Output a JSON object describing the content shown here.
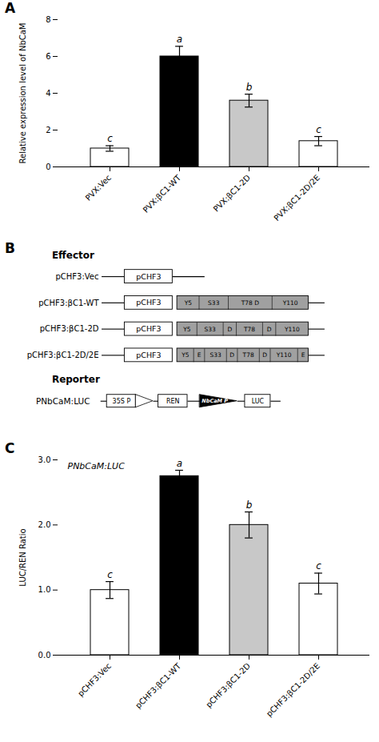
{
  "chart_data": [
    {
      "type": "bar",
      "title": "A",
      "categories": [
        "PVX:Vec",
        "PVX:βC1-WT",
        "PVX:βC1-2D",
        "PVX:βC1-2D/2E"
      ],
      "values": [
        1.0,
        6.0,
        3.6,
        1.4
      ],
      "errors": [
        0.15,
        0.55,
        0.35,
        0.25
      ],
      "letters": [
        "c",
        "a",
        "b",
        "c"
      ],
      "ylabel": "Relative expression level of NbCaM",
      "ylim": [
        0,
        8
      ],
      "yticks": [
        0,
        2,
        4,
        6,
        8
      ],
      "colors": [
        "white",
        "black",
        "#c8c8c8",
        "white"
      ]
    },
    {
      "type": "diagram",
      "title": "B",
      "effector_title": "Effector",
      "vector": "pCHF3",
      "color": "#a0a0a0",
      "rows": [
        {
          "label": "pCHF3:Vec"
        },
        {
          "label": "pCHF3:βC1-WT",
          "segments": [
            "Y5",
            "S33",
            "T78 D",
            "Y110"
          ]
        },
        {
          "label": "pCHF3:βC1-2D",
          "segments": [
            "Y5",
            "S33",
            "D",
            "T78",
            "D",
            "Y110"
          ]
        },
        {
          "label": "pCHF3:βC1-2D/2E",
          "segments": [
            "Y5",
            "E",
            "S33",
            "D",
            "T78",
            "D",
            "Y110",
            "E"
          ]
        }
      ],
      "reporter_title": "Reporter",
      "reporter_label": "PNbCaM:LUC",
      "reporter_elements": [
        "35S P",
        "REN",
        "NbCaM P",
        "LUC"
      ]
    },
    {
      "type": "bar",
      "title": "C",
      "categories": [
        "pCHF3:Vec",
        "pCHF3:βC1-WT",
        "pCHF3:βC1-2D",
        "pCHF3:βC1-2D/2E"
      ],
      "values": [
        1.0,
        2.75,
        2.0,
        1.1
      ],
      "errors": [
        0.13,
        0.09,
        0.2,
        0.16
      ],
      "letters": [
        "c",
        "a",
        "b",
        "c"
      ],
      "ylabel": "LUC/REN Ratio",
      "ylim": [
        0,
        3
      ],
      "yticks": [
        0,
        1,
        2,
        3
      ],
      "colors": [
        "white",
        "black",
        "#c8c8c8",
        "white"
      ],
      "annotation": "PNbCaM:LUC"
    }
  ]
}
